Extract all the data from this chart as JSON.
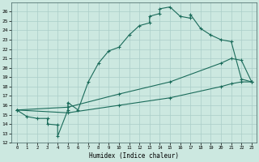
{
  "xlabel": "Humidex (Indice chaleur)",
  "bg_color": "#cce8e0",
  "line_color": "#1a6b5a",
  "grid_color": "#aacec8",
  "xlim": [
    -0.5,
    23.5
  ],
  "ylim": [
    12,
    27
  ],
  "xticks": [
    0,
    1,
    2,
    3,
    4,
    5,
    6,
    7,
    8,
    9,
    10,
    11,
    12,
    13,
    14,
    15,
    16,
    17,
    18,
    19,
    20,
    21,
    22,
    23
  ],
  "yticks": [
    12,
    13,
    14,
    15,
    16,
    17,
    18,
    19,
    20,
    21,
    22,
    23,
    24,
    25,
    26
  ],
  "line1_x": [
    0,
    1,
    2,
    3,
    3,
    4,
    4,
    5,
    5,
    6,
    7,
    8,
    9,
    10,
    11,
    12,
    13,
    13,
    14,
    14,
    15,
    16,
    17,
    17,
    18,
    19,
    20,
    21,
    22,
    23
  ],
  "line1_y": [
    15.5,
    14.8,
    14.6,
    14.6,
    14.0,
    13.9,
    12.7,
    15.5,
    16.3,
    15.5,
    18.5,
    20.5,
    21.8,
    22.2,
    23.5,
    24.5,
    24.8,
    25.5,
    25.8,
    26.3,
    26.5,
    25.5,
    25.3,
    25.7,
    24.2,
    23.5,
    23.0,
    22.8,
    18.8,
    18.5
  ],
  "line2_x": [
    0,
    5,
    10,
    15,
    20,
    21,
    22,
    23
  ],
  "line2_y": [
    15.5,
    15.8,
    17.2,
    18.5,
    20.5,
    21.0,
    20.8,
    18.5
  ],
  "line3_x": [
    0,
    5,
    10,
    15,
    20,
    21,
    22,
    23
  ],
  "line3_y": [
    15.5,
    15.2,
    16.0,
    16.8,
    18.0,
    18.3,
    18.5,
    18.5
  ],
  "marker": "+"
}
